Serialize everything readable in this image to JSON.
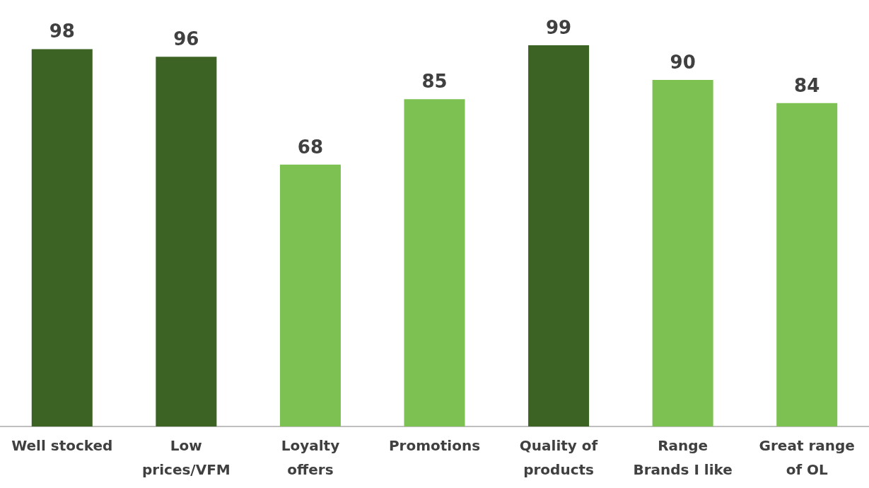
{
  "chart_data": {
    "type": "bar",
    "categories": [
      "Well stocked",
      "Low\nprices/VFM",
      "Loyalty\noffers",
      "Promotions",
      "Quality of\nproducts",
      "Range\nBrands I like",
      "Great range\nof OL"
    ],
    "values": [
      98,
      96,
      68,
      85,
      99,
      90,
      84
    ],
    "colors": [
      "#3d6324",
      "#3d6324",
      "#7dc153",
      "#7dc153",
      "#3d6324",
      "#7dc153",
      "#7dc153"
    ],
    "data_labels": true
  }
}
